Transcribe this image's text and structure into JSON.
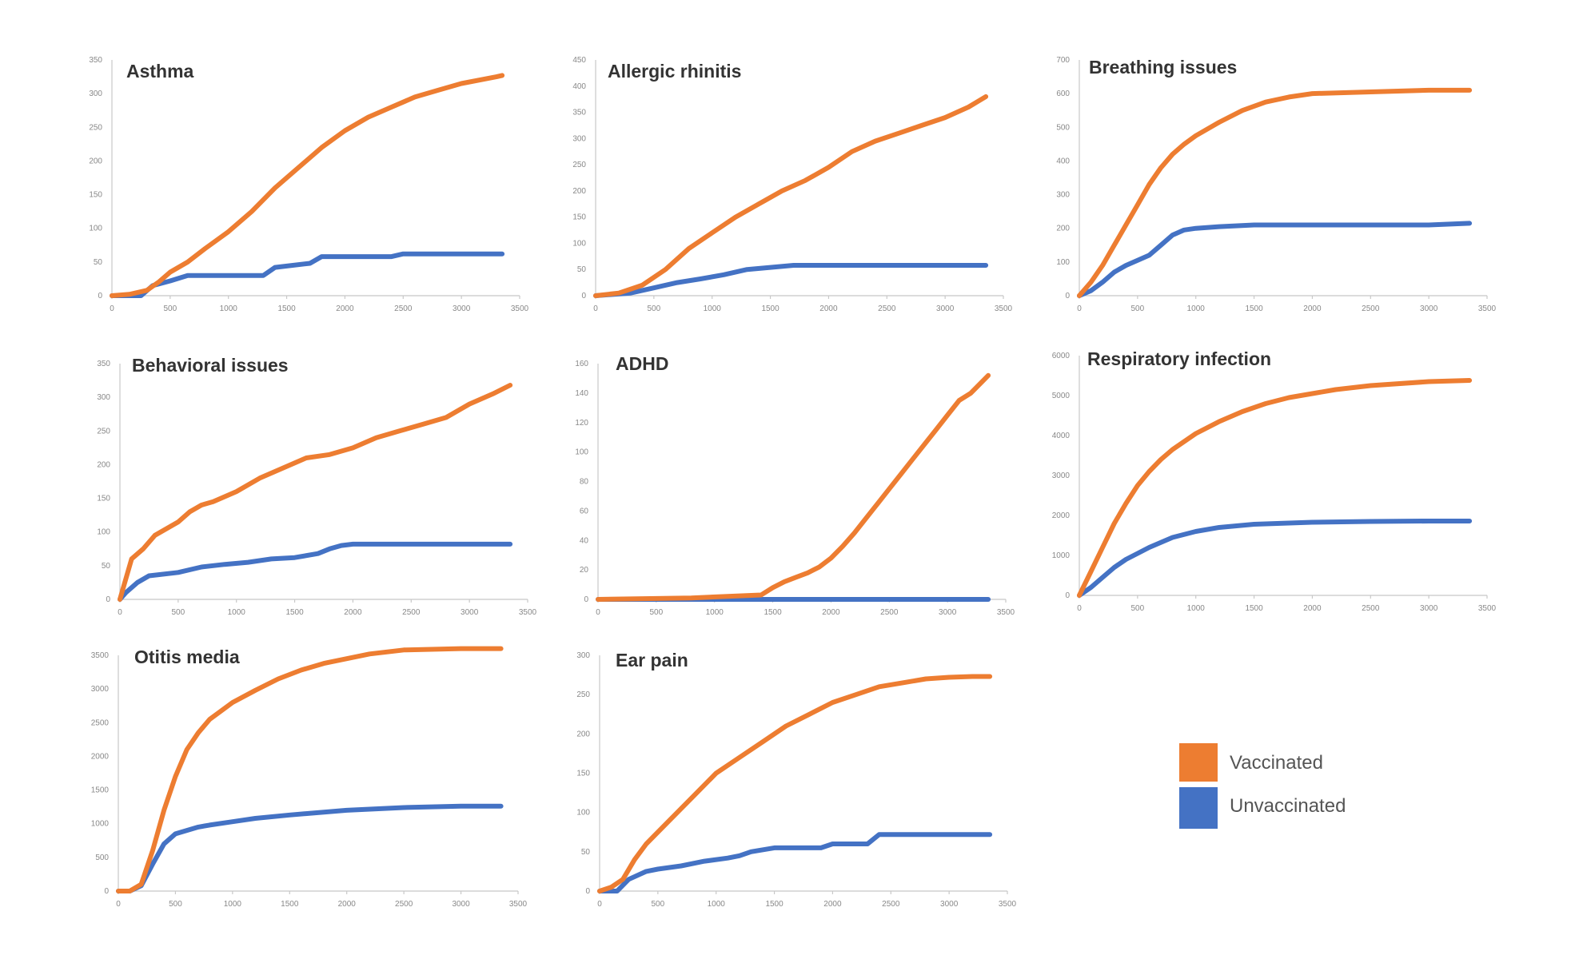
{
  "colors": {
    "vaccinated": "#ED7D31",
    "unvaccinated": "#4472C4"
  },
  "legend": {
    "placement": "bottom-right",
    "vaccinated_label": "Vaccinated",
    "unvaccinated_label": "Unvaccinated"
  },
  "chart_data": [
    {
      "type": "line",
      "title": "Asthma",
      "xlim": [
        0,
        3500
      ],
      "xticks": [
        0,
        500,
        1000,
        1500,
        2000,
        2500,
        3000,
        3500
      ],
      "ylim": [
        0,
        350
      ],
      "yticks": [
        0,
        50,
        100,
        150,
        200,
        250,
        300,
        350
      ],
      "series": [
        {
          "name": "Vaccinated",
          "x": [
            0,
            150,
            300,
            400,
            500,
            650,
            800,
            1000,
            1200,
            1400,
            1600,
            1800,
            2000,
            2200,
            2400,
            2600,
            2800,
            3000,
            3300,
            3350
          ],
          "values": [
            0,
            2,
            8,
            20,
            35,
            50,
            70,
            95,
            125,
            160,
            190,
            220,
            245,
            265,
            280,
            295,
            305,
            315,
            325,
            327
          ]
        },
        {
          "name": "Unvaccinated",
          "x": [
            0,
            250,
            350,
            500,
            650,
            1000,
            1300,
            1400,
            1700,
            1800,
            2400,
            2500,
            3350
          ],
          "values": [
            0,
            0,
            15,
            22,
            30,
            30,
            30,
            42,
            48,
            58,
            58,
            62,
            62
          ]
        }
      ]
    },
    {
      "type": "line",
      "title": "Allergic rhinitis",
      "xlim": [
        0,
        3500
      ],
      "xticks": [
        0,
        500,
        1000,
        1500,
        2000,
        2500,
        3000,
        3500
      ],
      "ylim": [
        0,
        450
      ],
      "yticks": [
        0,
        50,
        100,
        150,
        200,
        250,
        300,
        350,
        400,
        450
      ],
      "series": [
        {
          "name": "Vaccinated",
          "x": [
            0,
            200,
            400,
            600,
            800,
            1000,
            1200,
            1400,
            1600,
            1800,
            2000,
            2200,
            2400,
            2600,
            2800,
            3000,
            3200,
            3350
          ],
          "values": [
            0,
            5,
            20,
            50,
            90,
            120,
            150,
            175,
            200,
            220,
            245,
            275,
            295,
            310,
            325,
            340,
            360,
            380
          ]
        },
        {
          "name": "Unvaccinated",
          "x": [
            0,
            300,
            500,
            700,
            900,
            1100,
            1300,
            1700,
            2400,
            3350
          ],
          "values": [
            0,
            5,
            15,
            25,
            32,
            40,
            50,
            58,
            58,
            58
          ]
        }
      ]
    },
    {
      "type": "line",
      "title": "Breathing issues",
      "xlim": [
        0,
        3500
      ],
      "xticks": [
        0,
        500,
        1000,
        1500,
        2000,
        2500,
        3000,
        3500
      ],
      "ylim": [
        0,
        700
      ],
      "yticks": [
        0,
        100,
        200,
        300,
        400,
        500,
        600,
        700
      ],
      "series": [
        {
          "name": "Vaccinated",
          "x": [
            0,
            100,
            200,
            300,
            400,
            500,
            600,
            700,
            800,
            900,
            1000,
            1200,
            1400,
            1600,
            1800,
            2000,
            2500,
            3000,
            3350
          ],
          "values": [
            0,
            40,
            90,
            150,
            210,
            270,
            330,
            380,
            420,
            450,
            475,
            515,
            550,
            575,
            590,
            600,
            605,
            610,
            610
          ]
        },
        {
          "name": "Unvaccinated",
          "x": [
            0,
            100,
            200,
            300,
            400,
            500,
            600,
            700,
            800,
            900,
            1000,
            1200,
            1500,
            2000,
            3000,
            3350
          ],
          "values": [
            0,
            15,
            40,
            70,
            90,
            105,
            120,
            150,
            180,
            195,
            200,
            205,
            210,
            210,
            210,
            215
          ]
        }
      ]
    },
    {
      "type": "line",
      "title": "Behavioral issues",
      "xlim": [
        0,
        3500
      ],
      "xticks": [
        0,
        500,
        1000,
        1500,
        2000,
        2500,
        3000,
        3500
      ],
      "ylim": [
        0,
        350
      ],
      "yticks": [
        0,
        50,
        100,
        150,
        200,
        250,
        300,
        350
      ],
      "series": [
        {
          "name": "Vaccinated",
          "x": [
            0,
            50,
            100,
            200,
            300,
            400,
            500,
            600,
            700,
            800,
            1000,
            1200,
            1400,
            1600,
            1800,
            2000,
            2200,
            2400,
            2600,
            2800,
            3000,
            3200,
            3350
          ],
          "values": [
            0,
            30,
            60,
            75,
            95,
            105,
            115,
            130,
            140,
            145,
            160,
            180,
            195,
            210,
            215,
            225,
            240,
            250,
            260,
            270,
            290,
            305,
            318
          ]
        },
        {
          "name": "Unvaccinated",
          "x": [
            0,
            50,
            150,
            250,
            500,
            700,
            900,
            1100,
            1300,
            1500,
            1700,
            1800,
            1900,
            2000,
            3350
          ],
          "values": [
            0,
            10,
            25,
            35,
            40,
            48,
            52,
            55,
            60,
            62,
            68,
            75,
            80,
            82,
            82
          ]
        }
      ]
    },
    {
      "type": "line",
      "title": "ADHD",
      "xlim": [
        0,
        3500
      ],
      "xticks": [
        0,
        500,
        1000,
        1500,
        2000,
        2500,
        3000,
        3500
      ],
      "ylim": [
        0,
        160
      ],
      "yticks": [
        0,
        20,
        40,
        60,
        80,
        100,
        120,
        140,
        160
      ],
      "series": [
        {
          "name": "Vaccinated",
          "x": [
            0,
            800,
            1400,
            1500,
            1600,
            1700,
            1800,
            1900,
            2000,
            2100,
            2200,
            2300,
            2400,
            2500,
            2600,
            2700,
            2800,
            2900,
            3000,
            3100,
            3200,
            3300,
            3350
          ],
          "values": [
            0,
            1,
            3,
            8,
            12,
            15,
            18,
            22,
            28,
            36,
            45,
            55,
            65,
            75,
            85,
            95,
            105,
            115,
            125,
            135,
            140,
            148,
            152
          ]
        },
        {
          "name": "Unvaccinated",
          "x": [
            0,
            3350
          ],
          "values": [
            0,
            0
          ]
        }
      ]
    },
    {
      "type": "line",
      "title": "Respiratory infection",
      "xlim": [
        0,
        3500
      ],
      "xticks": [
        0,
        500,
        1000,
        1500,
        2000,
        2500,
        3000,
        3500
      ],
      "ylim": [
        0,
        6000
      ],
      "yticks": [
        0,
        1000,
        2000,
        3000,
        4000,
        5000,
        6000
      ],
      "series": [
        {
          "name": "Vaccinated",
          "x": [
            0,
            100,
            200,
            300,
            400,
            500,
            600,
            700,
            800,
            1000,
            1200,
            1400,
            1600,
            1800,
            2000,
            2200,
            2500,
            3000,
            3350
          ],
          "values": [
            0,
            600,
            1200,
            1800,
            2300,
            2750,
            3100,
            3400,
            3650,
            4050,
            4350,
            4600,
            4800,
            4950,
            5050,
            5150,
            5250,
            5350,
            5380
          ]
        },
        {
          "name": "Unvaccinated",
          "x": [
            0,
            100,
            200,
            300,
            400,
            500,
            600,
            800,
            1000,
            1200,
            1500,
            2000,
            2500,
            3000,
            3350
          ],
          "values": [
            0,
            200,
            450,
            700,
            900,
            1050,
            1200,
            1450,
            1600,
            1700,
            1780,
            1830,
            1850,
            1860,
            1860
          ]
        }
      ]
    },
    {
      "type": "line",
      "title": "Otitis media",
      "xlim": [
        0,
        3500
      ],
      "xticks": [
        0,
        500,
        1000,
        1500,
        2000,
        2500,
        3000,
        3500
      ],
      "ylim": [
        0,
        3500
      ],
      "yticks": [
        0,
        500,
        1000,
        1500,
        2000,
        2500,
        3000,
        3500
      ],
      "series": [
        {
          "name": "Vaccinated",
          "x": [
            0,
            100,
            200,
            300,
            400,
            500,
            600,
            700,
            800,
            1000,
            1200,
            1400,
            1600,
            1800,
            2000,
            2200,
            2500,
            3000,
            3350
          ],
          "values": [
            0,
            0,
            100,
            600,
            1200,
            1700,
            2100,
            2350,
            2550,
            2800,
            2980,
            3150,
            3280,
            3380,
            3450,
            3520,
            3580,
            3600,
            3600
          ]
        },
        {
          "name": "Unvaccinated",
          "x": [
            0,
            100,
            200,
            300,
            400,
            500,
            600,
            700,
            800,
            1000,
            1200,
            1500,
            2000,
            2500,
            3000,
            3350
          ],
          "values": [
            0,
            0,
            80,
            400,
            700,
            850,
            900,
            950,
            980,
            1030,
            1080,
            1130,
            1200,
            1240,
            1260,
            1260
          ]
        }
      ]
    },
    {
      "type": "line",
      "title": "Ear pain",
      "xlim": [
        0,
        3500
      ],
      "xticks": [
        0,
        500,
        1000,
        1500,
        2000,
        2500,
        3000,
        3500
      ],
      "ylim": [
        0,
        300
      ],
      "yticks": [
        0,
        50,
        100,
        150,
        200,
        250,
        300
      ],
      "series": [
        {
          "name": "Vaccinated",
          "x": [
            0,
            100,
            200,
            300,
            400,
            600,
            800,
            1000,
            1200,
            1400,
            1600,
            1800,
            2000,
            2200,
            2400,
            2600,
            2800,
            3000,
            3200,
            3350
          ],
          "values": [
            0,
            5,
            15,
            40,
            60,
            90,
            120,
            150,
            170,
            190,
            210,
            225,
            240,
            250,
            260,
            265,
            270,
            272,
            273,
            273
          ]
        },
        {
          "name": "Unvaccinated",
          "x": [
            0,
            150,
            250,
            400,
            500,
            700,
            900,
            1100,
            1200,
            1300,
            1500,
            1900,
            2000,
            2300,
            2400,
            3350
          ],
          "values": [
            0,
            0,
            15,
            25,
            28,
            32,
            38,
            42,
            45,
            50,
            55,
            55,
            60,
            60,
            72,
            72
          ]
        }
      ]
    }
  ]
}
